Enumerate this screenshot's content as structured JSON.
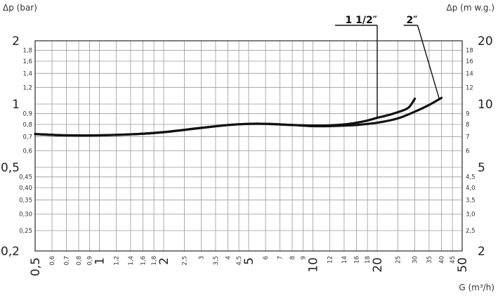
{
  "chart_data": {
    "type": "line",
    "title": "",
    "xlabel": "G (m³/h)",
    "ylabel": "Δp (bar)",
    "ylabel_right": "Δp (m w.g.)",
    "x_scale": "log",
    "y_scale": "log",
    "xlim": [
      0.5,
      50
    ],
    "ylim": [
      0.2,
      2
    ],
    "ylim_right": [
      2,
      20
    ],
    "grid": true,
    "x_ticks": [
      {
        "value": 0.5,
        "label": "0,5",
        "major": true
      },
      {
        "value": 0.6,
        "label": "0,6",
        "major": false
      },
      {
        "value": 0.7,
        "label": "0,7",
        "major": false
      },
      {
        "value": 0.8,
        "label": "0,8",
        "major": false
      },
      {
        "value": 0.9,
        "label": "0,9",
        "major": false
      },
      {
        "value": 1,
        "label": "1",
        "major": true
      },
      {
        "value": 1.2,
        "label": "1,2",
        "major": false
      },
      {
        "value": 1.4,
        "label": "1,4",
        "major": false
      },
      {
        "value": 1.6,
        "label": "1,6",
        "major": false
      },
      {
        "value": 1.8,
        "label": "1,8",
        "major": false
      },
      {
        "value": 2,
        "label": "2",
        "major": true
      },
      {
        "value": 2.5,
        "label": "2,5",
        "major": false
      },
      {
        "value": 3,
        "label": "3",
        "major": false
      },
      {
        "value": 3.5,
        "label": "3,5",
        "major": false
      },
      {
        "value": 4,
        "label": "4",
        "major": false
      },
      {
        "value": 4.5,
        "label": "4,5",
        "major": false
      },
      {
        "value": 5,
        "label": "5",
        "major": true
      },
      {
        "value": 6,
        "label": "6",
        "major": false
      },
      {
        "value": 7,
        "label": "7",
        "major": false
      },
      {
        "value": 8,
        "label": "8",
        "major": false
      },
      {
        "value": 9,
        "label": "9",
        "major": false
      },
      {
        "value": 10,
        "label": "10",
        "major": true
      },
      {
        "value": 12,
        "label": "12",
        "major": false
      },
      {
        "value": 14,
        "label": "14",
        "major": false
      },
      {
        "value": 16,
        "label": "16",
        "major": false
      },
      {
        "value": 18,
        "label": "18",
        "major": false
      },
      {
        "value": 20,
        "label": "20",
        "major": true
      },
      {
        "value": 25,
        "label": "25",
        "major": false
      },
      {
        "value": 30,
        "label": "30",
        "major": false
      },
      {
        "value": 35,
        "label": "35",
        "major": false
      },
      {
        "value": 40,
        "label": "40",
        "major": false
      },
      {
        "value": 45,
        "label": "45",
        "major": false
      },
      {
        "value": 50,
        "label": "50",
        "major": true
      }
    ],
    "y_ticks_left": [
      {
        "value": 0.2,
        "label": "0,2",
        "major": true
      },
      {
        "value": 0.25,
        "label": "0,25",
        "major": false
      },
      {
        "value": 0.3,
        "label": "0,30",
        "major": false
      },
      {
        "value": 0.35,
        "label": "0,35",
        "major": false
      },
      {
        "value": 0.4,
        "label": "0,40",
        "major": false
      },
      {
        "value": 0.45,
        "label": "0,45",
        "major": false
      },
      {
        "value": 0.5,
        "label": "0,5",
        "major": true
      },
      {
        "value": 0.6,
        "label": "0,6",
        "major": false
      },
      {
        "value": 0.7,
        "label": "0,7",
        "major": false
      },
      {
        "value": 0.8,
        "label": "0,8",
        "major": false
      },
      {
        "value": 0.9,
        "label": "0,9",
        "major": false
      },
      {
        "value": 1,
        "label": "1",
        "major": true
      },
      {
        "value": 1.2,
        "label": "1,2",
        "major": false
      },
      {
        "value": 1.4,
        "label": "1,4",
        "major": false
      },
      {
        "value": 1.6,
        "label": "1,6",
        "major": false
      },
      {
        "value": 1.8,
        "label": "1,8",
        "major": false
      },
      {
        "value": 2,
        "label": "2",
        "major": true
      }
    ],
    "y_ticks_right": [
      {
        "value": 2,
        "label": "2",
        "major": true
      },
      {
        "value": 2.5,
        "label": "2,5",
        "major": false
      },
      {
        "value": 3,
        "label": "3,0",
        "major": false
      },
      {
        "value": 3.5,
        "label": "3,5",
        "major": false
      },
      {
        "value": 4,
        "label": "4,0",
        "major": false
      },
      {
        "value": 4.5,
        "label": "4,5",
        "major": false
      },
      {
        "value": 5,
        "label": "5",
        "major": true
      },
      {
        "value": 6,
        "label": "6",
        "major": false
      },
      {
        "value": 7,
        "label": "7",
        "major": false
      },
      {
        "value": 8,
        "label": "8",
        "major": false
      },
      {
        "value": 9,
        "label": "9",
        "major": false
      },
      {
        "value": 10,
        "label": "10",
        "major": true
      },
      {
        "value": 12,
        "label": "12",
        "major": false
      },
      {
        "value": 14,
        "label": "14",
        "major": false
      },
      {
        "value": 16,
        "label": "16",
        "major": false
      },
      {
        "value": 18,
        "label": "18",
        "major": false
      },
      {
        "value": 20,
        "label": "20",
        "major": true
      }
    ],
    "series": [
      {
        "name": "1 1/2″",
        "label_at": [
          20,
          1.6
        ],
        "points": [
          [
            0.5,
            0.72
          ],
          [
            0.7,
            0.71
          ],
          [
            1,
            0.71
          ],
          [
            1.5,
            0.72
          ],
          [
            2,
            0.735
          ],
          [
            3,
            0.77
          ],
          [
            4,
            0.795
          ],
          [
            5,
            0.805
          ],
          [
            6,
            0.805
          ],
          [
            8,
            0.795
          ],
          [
            10,
            0.79
          ],
          [
            12,
            0.792
          ],
          [
            14,
            0.8
          ],
          [
            16,
            0.815
          ],
          [
            18,
            0.835
          ],
          [
            20,
            0.86
          ],
          [
            22,
            0.88
          ],
          [
            25,
            0.915
          ],
          [
            28,
            0.96
          ],
          [
            30,
            1.06
          ]
        ]
      },
      {
        "name": "2″",
        "label_at": [
          30,
          1.6
        ],
        "points": [
          [
            0.5,
            0.72
          ],
          [
            0.7,
            0.71
          ],
          [
            1,
            0.71
          ],
          [
            1.5,
            0.72
          ],
          [
            2,
            0.735
          ],
          [
            3,
            0.77
          ],
          [
            4,
            0.795
          ],
          [
            5,
            0.805
          ],
          [
            6,
            0.805
          ],
          [
            8,
            0.795
          ],
          [
            10,
            0.785
          ],
          [
            12,
            0.785
          ],
          [
            14,
            0.79
          ],
          [
            16,
            0.795
          ],
          [
            20,
            0.815
          ],
          [
            25,
            0.855
          ],
          [
            30,
            0.92
          ],
          [
            35,
            0.99
          ],
          [
            40,
            1.07
          ]
        ]
      }
    ]
  }
}
